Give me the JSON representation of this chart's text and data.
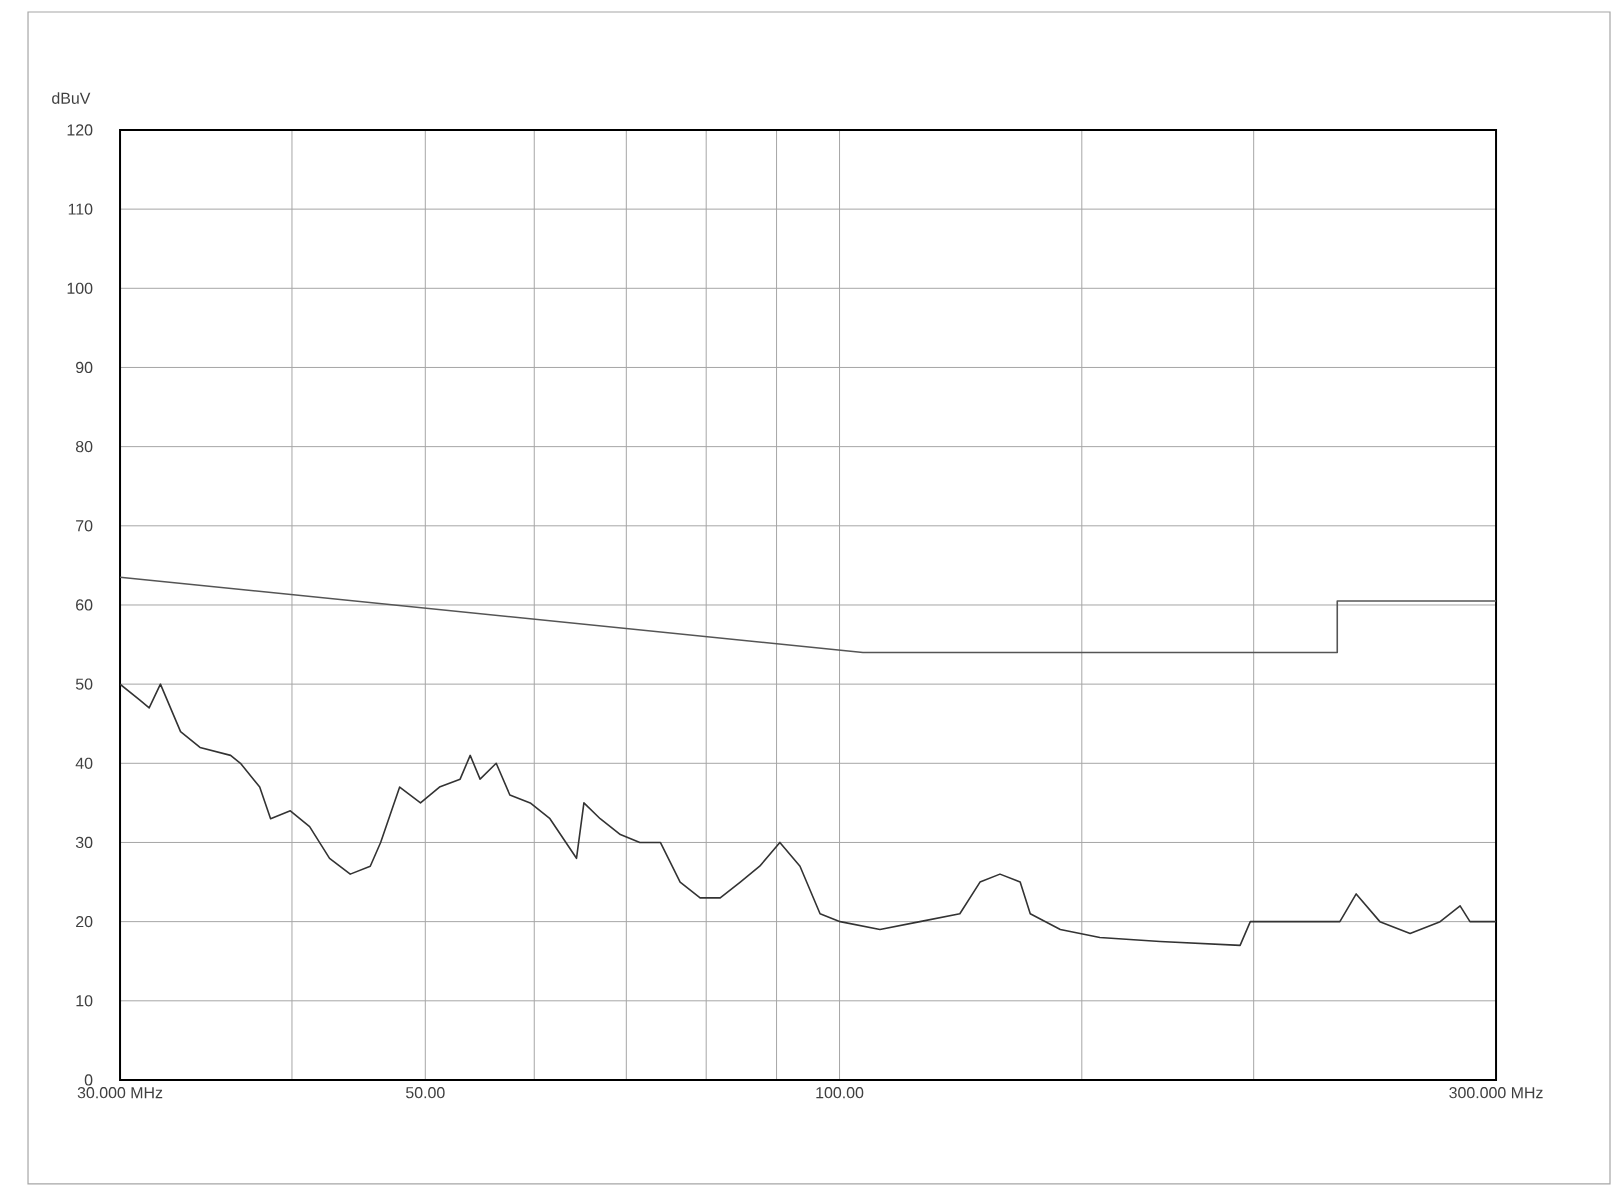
{
  "chart_data": {
    "type": "line",
    "ylabel": "dBuV",
    "log": "x",
    "grid": true,
    "xlim": [
      30,
      300
    ],
    "ylim": [
      0,
      120
    ],
    "xticks": [
      {
        "value": 30,
        "label": "30.000 MHz"
      },
      {
        "value": 40,
        "label": null
      },
      {
        "value": 50,
        "label": "50.00"
      },
      {
        "value": 60,
        "label": null
      },
      {
        "value": 70,
        "label": null
      },
      {
        "value": 80,
        "label": null
      },
      {
        "value": 90,
        "label": null
      },
      {
        "value": 100,
        "label": "100.00"
      },
      {
        "value": 150,
        "label": null
      },
      {
        "value": 200,
        "label": null
      },
      {
        "value": 300,
        "label": "300.000 MHz"
      }
    ],
    "yticks": [
      0,
      10,
      20,
      30,
      40,
      50,
      60,
      70,
      80,
      90,
      100,
      110,
      120
    ],
    "series": [
      {
        "color": "#555555",
        "x": [
          30,
          104,
          230,
          230,
          300
        ],
        "values": [
          63.5,
          54,
          54,
          60.5,
          60.5
        ]
      },
      {
        "color": "#333333",
        "x": [
          30,
          31.0,
          31.5,
          32.1,
          33.2,
          34.3,
          36.1,
          36.7,
          37.9,
          38.6,
          39.9,
          41.2,
          42.6,
          44.1,
          45.6,
          46.4,
          47.9,
          49.6,
          51.2,
          53.0,
          53.9,
          54.8,
          56.3,
          57.6,
          59.6,
          61.6,
          64.4,
          65.2,
          67.0,
          69.3,
          71.6,
          74.1,
          76.6,
          79.2,
          81.9,
          84.7,
          87.5,
          90.5,
          93.6,
          96.8,
          100.1,
          107.0,
          114.4,
          122.3,
          126.5,
          130.8,
          135.3,
          137.6,
          144.7,
          154.6,
          171.0,
          195.5,
          198.9,
          216.1,
          231.0,
          237.4,
          247.0,
          259.8,
          273.2,
          282.5,
          287.2,
          300
        ],
        "values": [
          50,
          48,
          47,
          50,
          44,
          42,
          41,
          40,
          37,
          33,
          34,
          32,
          28,
          26,
          27,
          30,
          37,
          35,
          37,
          38,
          41,
          38,
          40,
          36,
          35,
          33,
          28,
          35,
          33,
          31,
          30,
          30,
          25,
          23,
          23,
          25,
          27,
          30,
          27,
          21,
          20,
          19,
          20,
          21,
          25,
          26,
          25,
          21,
          19,
          18,
          17.5,
          17,
          20,
          20,
          20,
          23.5,
          20,
          18.5,
          20,
          22,
          20,
          20
        ]
      }
    ]
  }
}
